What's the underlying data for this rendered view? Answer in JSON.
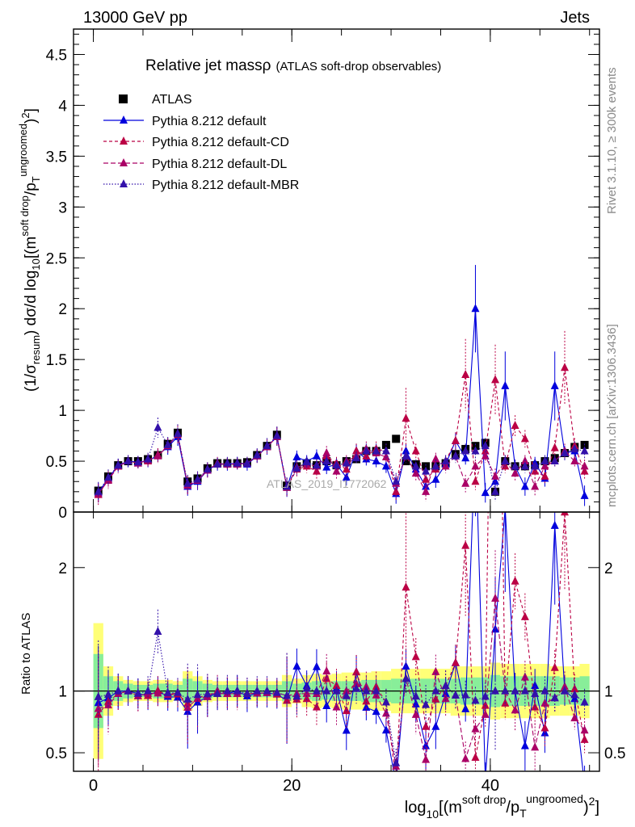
{
  "header": {
    "energy": "13000 GeV pp",
    "category": "Jets"
  },
  "side": {
    "rivet": "Rivet 3.1.10, ≥ 300k events",
    "mcplots": "mcplots.cern.ch [arXiv:1306.3436]"
  },
  "watermark": "ATLAS_2019_I1772062",
  "chart_data": [
    {
      "type": "scatter",
      "panel": "main",
      "title": "Relative jet mass",
      "title_symbol": "ρ",
      "subtitle": "(ATLAS soft-drop observables)",
      "ylabel": "(1/σresum) dσ/d log10[(m^{soft drop}/p_T^{ungroomed})^2]",
      "xlabel": "log10[(m^{soft drop}/p_T^{ungroomed})^2]",
      "xlim": [
        -2,
        51
      ],
      "ylim": [
        0,
        4.75
      ],
      "yticks": [
        "0",
        "0.5",
        "1",
        "1.5",
        "2",
        "2.5",
        "3",
        "3.5",
        "4",
        "4.5"
      ],
      "xticks": [
        "0",
        "20",
        "40"
      ],
      "legend": [
        "ATLAS",
        "Pythia 8.212 default",
        "Pythia 8.212 default-CD",
        "Pythia 8.212 default-DL",
        "Pythia 8.212 default-MBR"
      ],
      "x": [
        0.5,
        1.5,
        2.5,
        3.5,
        4.5,
        5.5,
        6.5,
        7.5,
        8.5,
        9.5,
        10.5,
        11.5,
        12.5,
        13.5,
        14.5,
        15.5,
        16.5,
        17.5,
        18.5,
        19.5,
        20.5,
        21.5,
        22.5,
        23.5,
        24.5,
        25.5,
        26.5,
        27.5,
        28.5,
        29.5,
        30.5,
        31.5,
        32.5,
        33.5,
        34.5,
        35.5,
        36.5,
        37.5,
        38.5,
        39.5,
        40.5,
        41.5,
        42.5,
        43.5,
        44.5,
        45.5,
        46.5,
        47.5,
        48.5,
        49.5
      ],
      "series": [
        {
          "name": "ATLAS",
          "color": "#000000",
          "marker": "square",
          "values": [
            0.21,
            0.35,
            0.46,
            0.5,
            0.5,
            0.52,
            0.56,
            0.67,
            0.78,
            0.3,
            0.33,
            0.43,
            0.48,
            0.48,
            0.48,
            0.49,
            0.56,
            0.65,
            0.76,
            0.26,
            0.45,
            0.48,
            0.46,
            0.5,
            0.46,
            0.5,
            0.52,
            0.6,
            0.6,
            0.66,
            0.72,
            0.5,
            0.47,
            0.45,
            0.45,
            0.48,
            0.57,
            0.62,
            0.65,
            0.68,
            0.2,
            0.5,
            0.45,
            0.45,
            0.46,
            0.5,
            0.53,
            0.58,
            0.64,
            0.66
          ]
        },
        {
          "name": "Pythia 8.212 default",
          "color": "#0000dd",
          "marker": "triangle",
          "values": [
            0.19,
            0.33,
            0.46,
            0.5,
            0.49,
            0.5,
            0.56,
            0.64,
            0.74,
            0.25,
            0.3,
            0.41,
            0.47,
            0.47,
            0.48,
            0.47,
            0.55,
            0.64,
            0.74,
            0.24,
            0.54,
            0.5,
            0.55,
            0.44,
            0.47,
            0.34,
            0.6,
            0.52,
            0.5,
            0.45,
            0.18,
            0.6,
            0.42,
            0.25,
            0.32,
            0.47,
            0.7,
            0.53,
            2.0,
            0.19,
            0.3,
            1.24,
            0.45,
            0.25,
            0.48,
            0.33,
            1.24,
            0.58,
            0.6,
            0.16
          ]
        },
        {
          "name": "Pythia 8.212 default-CD",
          "color": "#bb0044",
          "marker": "triangle",
          "values": [
            0.17,
            0.32,
            0.45,
            0.5,
            0.48,
            0.5,
            0.56,
            0.65,
            0.76,
            0.27,
            0.31,
            0.42,
            0.47,
            0.47,
            0.47,
            0.48,
            0.55,
            0.64,
            0.74,
            0.24,
            0.42,
            0.45,
            0.4,
            0.55,
            0.48,
            0.42,
            0.6,
            0.55,
            0.62,
            0.6,
            0.2,
            0.92,
            0.6,
            0.32,
            0.42,
            0.5,
            0.7,
            1.35,
            0.3,
            0.6,
            1.3,
            0.45,
            0.85,
            0.72,
            0.4,
            0.35,
            0.63,
            1.42,
            0.65,
            0.4
          ]
        },
        {
          "name": "Pythia 8.212 default-DL",
          "color": "#aa0066",
          "marker": "triangle",
          "values": [
            0.18,
            0.31,
            0.45,
            0.5,
            0.48,
            0.51,
            0.55,
            0.65,
            0.77,
            0.26,
            0.31,
            0.41,
            0.48,
            0.47,
            0.47,
            0.48,
            0.55,
            0.64,
            0.75,
            0.25,
            0.44,
            0.47,
            0.45,
            0.58,
            0.4,
            0.5,
            0.55,
            0.62,
            0.58,
            0.54,
            0.28,
            0.55,
            0.38,
            0.2,
            0.52,
            0.45,
            0.55,
            0.28,
            0.45,
            0.55,
            0.35,
            0.5,
            0.38,
            0.5,
            0.25,
            0.45,
            0.5,
            0.6,
            0.5,
            0.45
          ]
        },
        {
          "name": "Pythia 8.212 default-MBR",
          "color": "#3311aa",
          "marker": "triangle",
          "values": [
            0.2,
            0.34,
            0.46,
            0.5,
            0.49,
            0.52,
            0.83,
            0.66,
            0.77,
            0.28,
            0.32,
            0.42,
            0.47,
            0.48,
            0.48,
            0.48,
            0.56,
            0.65,
            0.75,
            0.25,
            0.43,
            0.49,
            0.46,
            0.5,
            0.46,
            0.48,
            0.53,
            0.6,
            0.6,
            0.6,
            0.3,
            0.55,
            0.45,
            0.4,
            0.45,
            0.5,
            0.55,
            0.6,
            0.6,
            0.65,
            0.2,
            0.5,
            0.45,
            0.45,
            0.45,
            0.5,
            0.5,
            0.58,
            0.62,
            0.6
          ]
        }
      ]
    },
    {
      "type": "scatter",
      "panel": "ratio",
      "ylabel": "Ratio to ATLAS",
      "ylim": [
        0.35,
        2.45
      ],
      "yticks": [
        "0.5",
        "1",
        "2"
      ],
      "band_inner": [
        0.3,
        0.12,
        0.08,
        0.06,
        0.05,
        0.05,
        0.06,
        0.06,
        0.05,
        0.1,
        0.08,
        0.06,
        0.05,
        0.05,
        0.05,
        0.05,
        0.05,
        0.05,
        0.05,
        0.08,
        0.06,
        0.07,
        0.08,
        0.07,
        0.08,
        0.08,
        0.08,
        0.09,
        0.09,
        0.09,
        0.1,
        0.1,
        0.1,
        0.1,
        0.1,
        0.1,
        0.1,
        0.11,
        0.11,
        0.11,
        0.13,
        0.12,
        0.12,
        0.12,
        0.12,
        0.12,
        0.12,
        0.11,
        0.11,
        0.12
      ],
      "band_outer": [
        0.55,
        0.2,
        0.12,
        0.09,
        0.08,
        0.08,
        0.09,
        0.09,
        0.08,
        0.16,
        0.12,
        0.09,
        0.08,
        0.08,
        0.08,
        0.08,
        0.08,
        0.08,
        0.08,
        0.13,
        0.1,
        0.13,
        0.14,
        0.13,
        0.14,
        0.15,
        0.15,
        0.15,
        0.16,
        0.16,
        0.18,
        0.18,
        0.18,
        0.18,
        0.18,
        0.18,
        0.2,
        0.2,
        0.2,
        0.2,
        0.23,
        0.22,
        0.22,
        0.22,
        0.22,
        0.22,
        0.2,
        0.2,
        0.2,
        0.22
      ],
      "reference": 1
    }
  ]
}
